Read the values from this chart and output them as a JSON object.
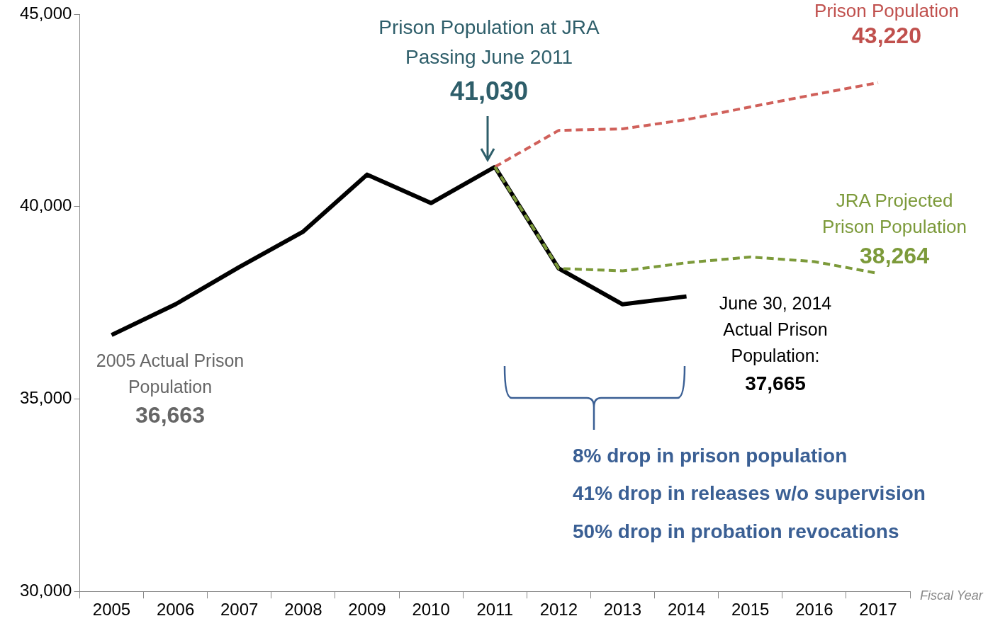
{
  "chart_data": {
    "type": "line",
    "xlabel": "Fiscal Year",
    "categories": [
      "2005",
      "2006",
      "2007",
      "2008",
      "2009",
      "2010",
      "2011",
      "2012",
      "2013",
      "2014",
      "2015",
      "2016",
      "2017"
    ],
    "series": [
      {
        "color": "#000000",
        "line_style": "solid",
        "values": [
          36663,
          37460,
          38430,
          39350,
          40830,
          40090,
          41030,
          38390,
          37460,
          37665,
          null,
          null,
          null
        ]
      },
      {
        "color": "#d0605a",
        "line_style": "dashed",
        "values": [
          null,
          null,
          null,
          null,
          null,
          null,
          41030,
          41980,
          42020,
          42260,
          42590,
          42910,
          43220
        ]
      },
      {
        "color": "#7c9a3a",
        "line_style": "dashed",
        "values": [
          null,
          null,
          null,
          null,
          null,
          null,
          41030,
          38390,
          38330,
          38540,
          38690,
          38570,
          38264
        ]
      }
    ],
    "ylim": [
      30000,
      45000
    ],
    "yticks": [
      {
        "value": 30000,
        "label": "30,000"
      },
      {
        "value": 35000,
        "label": "35,000"
      },
      {
        "value": 40000,
        "label": "40,000"
      },
      {
        "value": 45000,
        "label": "45,000"
      }
    ],
    "grid": false,
    "legend": false,
    "marker": "none",
    "annotations": [
      "Prison Population at JRA Passing June 2011",
      "41,030",
      "Prison Population",
      "43,220",
      "JRA Projected Prison Population",
      "38,264",
      "June 30, 2014 Actual Prison Population:",
      "37,665",
      "2005 Actual Prison Population",
      "36,663",
      "8% drop in prison population",
      "41% drop in releases w/o supervision",
      "50% drop in probation revocations"
    ]
  }
}
